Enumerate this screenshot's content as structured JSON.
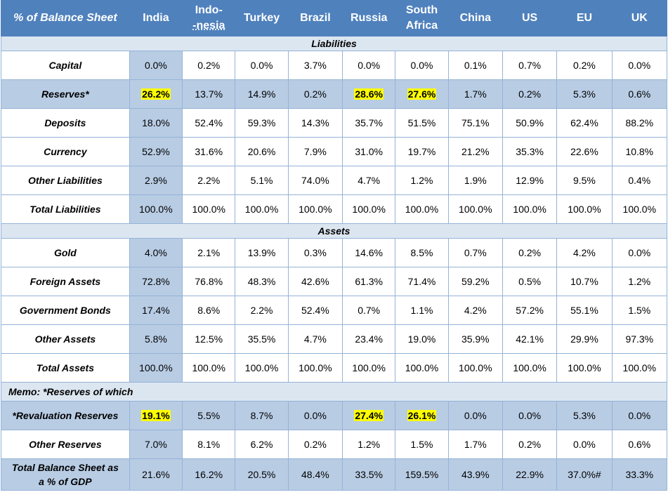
{
  "header": {
    "corner": "% of Balance Sheet",
    "countries": [
      "India",
      "Indo-\n-nesia",
      "Turkey",
      "Brazil",
      "Russia",
      "South Africa",
      "China",
      "US",
      "EU",
      "UK"
    ]
  },
  "sections": {
    "liabilities_title": "Liabilities",
    "assets_title": "Assets",
    "memo_title": "Memo: *Reserves of which"
  },
  "liabilities": [
    {
      "label": "Capital",
      "shaded": false,
      "values": [
        "0.0%",
        "0.2%",
        "0.0%",
        "3.7%",
        "0.0%",
        "0.0%",
        "0.1%",
        "0.7%",
        "0.2%",
        "0.0%"
      ],
      "highlight": []
    },
    {
      "label": "Reserves*",
      "shaded": true,
      "values": [
        "26.2%",
        "13.7%",
        "14.9%",
        "0.2%",
        "28.6%",
        "27.6%",
        "1.7%",
        "0.2%",
        "5.3%",
        "0.6%"
      ],
      "highlight": [
        0,
        4,
        5
      ]
    },
    {
      "label": "Deposits",
      "shaded": false,
      "values": [
        "18.0%",
        "52.4%",
        "59.3%",
        "14.3%",
        "35.7%",
        "51.5%",
        "75.1%",
        "50.9%",
        "62.4%",
        "88.2%"
      ],
      "highlight": []
    },
    {
      "label": "Currency",
      "shaded": false,
      "values": [
        "52.9%",
        "31.6%",
        "20.6%",
        "7.9%",
        "31.0%",
        "19.7%",
        "21.2%",
        "35.3%",
        "22.6%",
        "10.8%"
      ],
      "highlight": []
    },
    {
      "label": "Other Liabilities",
      "shaded": false,
      "values": [
        "2.9%",
        "2.2%",
        "5.1%",
        "74.0%",
        "4.7%",
        "1.2%",
        "1.9%",
        "12.9%",
        "9.5%",
        "0.4%"
      ],
      "highlight": []
    },
    {
      "label": "Total Liabilities",
      "shaded": false,
      "values": [
        "100.0%",
        "100.0%",
        "100.0%",
        "100.0%",
        "100.0%",
        "100.0%",
        "100.0%",
        "100.0%",
        "100.0%",
        "100.0%"
      ],
      "highlight": []
    }
  ],
  "assets": [
    {
      "label": "Gold",
      "shaded": false,
      "values": [
        "4.0%",
        "2.1%",
        "13.9%",
        "0.3%",
        "14.6%",
        "8.5%",
        "0.7%",
        "0.2%",
        "4.2%",
        "0.0%"
      ],
      "highlight": []
    },
    {
      "label": "Foreign Assets",
      "shaded": false,
      "values": [
        "72.8%",
        "76.8%",
        "48.3%",
        "42.6%",
        "61.3%",
        "71.4%",
        "59.2%",
        "0.5%",
        "10.7%",
        "1.2%"
      ],
      "highlight": []
    },
    {
      "label": "Government Bonds",
      "shaded": false,
      "values": [
        "17.4%",
        "8.6%",
        "2.2%",
        "52.4%",
        "0.7%",
        "1.1%",
        "4.2%",
        "57.2%",
        "55.1%",
        "1.5%"
      ],
      "highlight": []
    },
    {
      "label": "Other Assets",
      "shaded": false,
      "values": [
        "5.8%",
        "12.5%",
        "35.5%",
        "4.7%",
        "23.4%",
        "19.0%",
        "35.9%",
        "42.1%",
        "29.9%",
        "97.3%"
      ],
      "highlight": []
    },
    {
      "label": "Total Assets",
      "shaded": false,
      "values": [
        "100.0%",
        "100.0%",
        "100.0%",
        "100.0%",
        "100.0%",
        "100.0%",
        "100.0%",
        "100.0%",
        "100.0%",
        "100.0%"
      ],
      "highlight": []
    }
  ],
  "memo": [
    {
      "label": "*Revaluation Reserves",
      "shaded": true,
      "values": [
        "19.1%",
        "5.5%",
        "8.7%",
        "0.0%",
        "27.4%",
        "26.1%",
        "0.0%",
        "0.0%",
        "5.3%",
        "0.0%"
      ],
      "highlight": [
        0,
        4,
        5
      ]
    },
    {
      "label": "Other Reserves",
      "shaded": false,
      "values": [
        "7.0%",
        "8.1%",
        "6.2%",
        "0.2%",
        "1.2%",
        "1.5%",
        "1.7%",
        "0.2%",
        "0.0%",
        "0.6%"
      ],
      "highlight": []
    }
  ],
  "total_row": {
    "label": "Total Balance Sheet as a % of GDP",
    "values": [
      "21.6%",
      "16.2%",
      "20.5%",
      "48.4%",
      "33.5%",
      "159.5%",
      "43.9%",
      "22.9%",
      "37.0%#",
      "33.3%"
    ]
  },
  "colors": {
    "header_bg": "#4f81bd",
    "shade": "#b8cce4",
    "section_bg": "#dce6f1",
    "highlight": "#ffff00"
  }
}
